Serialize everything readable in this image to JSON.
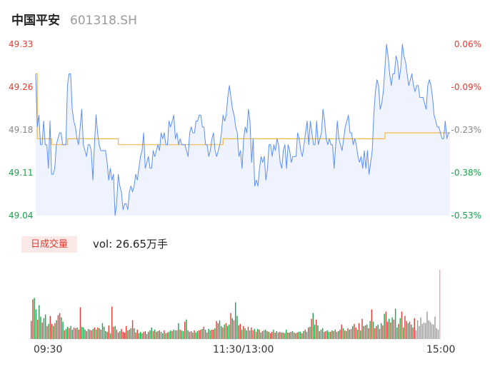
{
  "header": {
    "name": "中国平安",
    "code": "601318.SH"
  },
  "y_left_labels": [
    "49.33",
    "49.26",
    "49.18",
    "49.11",
    "49.04"
  ],
  "y_right_labels": [
    "0.06%",
    "-0.09%",
    "-0.23%",
    "-0.38%",
    "-0.53%"
  ],
  "volume": {
    "tag": "日成交量",
    "text": "vol: 26.65万手"
  },
  "time_labels": [
    "09:30",
    "11:30/13:00",
    "15:00"
  ],
  "colors": {
    "price": "#5b8ff9",
    "avg": "#f7b84b",
    "up": "#e33b33",
    "down": "#16a34a",
    "flat": "#9a9a9a",
    "fill": "#eef3fd"
  },
  "chart_data": {
    "type": "line",
    "x_ticks": [
      "09:30",
      "11:30/13:00",
      "15:00"
    ],
    "ylim": [
      49.04,
      49.33
    ],
    "series": [
      {
        "values": [
          49.28,
          49.19,
          49.21,
          49.16,
          49.16,
          49.2,
          49.16,
          49.16,
          49.12,
          49.2,
          49.11,
          49.11,
          49.12,
          49.16,
          49.17,
          49.18,
          49.18,
          49.16,
          49.16,
          49.16,
          49.26,
          49.28,
          49.28,
          49.22,
          49.2,
          49.19,
          49.17,
          49.16,
          49.19,
          49.22,
          49.16,
          49.15,
          49.14,
          49.16,
          49.16,
          49.15,
          49.1,
          49.16,
          49.21,
          49.18,
          49.16,
          49.15,
          49.15,
          49.15,
          49.15,
          49.13,
          49.1,
          49.12,
          49.1,
          49.11,
          49.04,
          49.06,
          49.11,
          49.09,
          49.08,
          49.05,
          49.06,
          49.06,
          49.05,
          49.08,
          49.09,
          49.08,
          49.09,
          49.11,
          49.1,
          49.12,
          49.14,
          49.15,
          49.18,
          49.12,
          49.13,
          49.14,
          49.12,
          49.12,
          49.15,
          49.14,
          49.15,
          49.16,
          49.15,
          49.18,
          49.17,
          49.18,
          49.16,
          49.16,
          49.2,
          49.19,
          49.2,
          49.21,
          49.17,
          49.18,
          49.16,
          49.17,
          49.16,
          49.16,
          49.16,
          49.15,
          49.14,
          49.18,
          49.19,
          49.18,
          49.18,
          49.2,
          49.2,
          49.21,
          49.21,
          49.19,
          49.19,
          49.16,
          49.16,
          49.14,
          49.15,
          49.17,
          49.18,
          49.15,
          49.14,
          49.15,
          49.16,
          49.18,
          49.21,
          49.2,
          49.21,
          49.24,
          49.26,
          49.24,
          49.22,
          49.21,
          49.19,
          49.18,
          49.14,
          49.15,
          49.12,
          49.17,
          49.19,
          49.18,
          49.22,
          49.2,
          49.13,
          49.17,
          49.09,
          49.1,
          49.09,
          49.12,
          49.14,
          49.13,
          49.14,
          49.1,
          49.12,
          49.16,
          49.16,
          49.14,
          49.16,
          49.15,
          49.17,
          49.16,
          49.13,
          49.12,
          49.15,
          49.16,
          49.12,
          49.16,
          49.15,
          49.13,
          49.14,
          49.14,
          49.14,
          49.18,
          49.17,
          49.15,
          49.14,
          49.16,
          49.18,
          49.2,
          49.16,
          49.2,
          49.18,
          49.16,
          49.16,
          49.2,
          49.16,
          49.17,
          49.18,
          49.22,
          49.2,
          49.17,
          49.16,
          49.17,
          49.16,
          49.16,
          49.12,
          49.16,
          49.2,
          49.17,
          49.16,
          49.15,
          49.17,
          49.19,
          49.2,
          49.21,
          49.18,
          49.18,
          49.16,
          49.17,
          49.16,
          49.14,
          49.13,
          49.14,
          49.12,
          49.15,
          49.12,
          49.15,
          49.11,
          49.13,
          49.15,
          49.21,
          49.25,
          49.27,
          49.26,
          49.22,
          49.23,
          49.25,
          49.29,
          49.33,
          49.31,
          49.28,
          49.26,
          49.28,
          49.28,
          49.31,
          49.3,
          49.27,
          49.29,
          49.33,
          49.31,
          49.3,
          49.28,
          49.26,
          49.27,
          49.28,
          49.26,
          49.25,
          49.26,
          49.26,
          49.24,
          49.24,
          49.24,
          49.23,
          49.22,
          49.26,
          49.27,
          49.26,
          49.24,
          49.21,
          49.2,
          49.19,
          49.19,
          49.18,
          49.17,
          49.17,
          49.2,
          49.17,
          49.18,
          49.18
        ]
      },
      {
        "values": [
          49.28,
          49.17,
          49.17,
          49.17,
          49.17,
          49.17,
          49.17,
          49.17,
          49.17,
          49.17,
          49.16,
          49.16,
          49.16,
          49.16,
          49.16,
          49.16,
          49.16,
          49.16,
          49.16,
          49.16,
          49.17,
          49.17,
          49.17,
          49.17,
          49.17,
          49.17,
          49.17,
          49.17,
          49.17,
          49.17,
          49.17,
          49.17,
          49.17,
          49.17,
          49.17,
          49.17,
          49.17,
          49.17,
          49.17,
          49.17,
          49.17,
          49.17,
          49.17,
          49.17,
          49.17,
          49.17,
          49.17,
          49.17,
          49.17,
          49.17,
          49.17,
          49.17,
          49.16,
          49.16,
          49.16,
          49.16,
          49.16,
          49.16,
          49.16,
          49.16,
          49.16,
          49.16,
          49.16,
          49.16,
          49.16,
          49.16,
          49.16,
          49.16,
          49.16,
          49.16,
          49.16,
          49.16,
          49.16,
          49.16,
          49.16,
          49.16,
          49.16,
          49.16,
          49.16,
          49.16,
          49.16,
          49.16,
          49.16,
          49.16,
          49.16,
          49.16,
          49.16,
          49.16,
          49.16,
          49.16,
          49.16,
          49.16,
          49.16,
          49.16,
          49.16,
          49.16,
          49.16,
          49.16,
          49.16,
          49.16,
          49.16,
          49.16,
          49.16,
          49.16,
          49.16,
          49.16,
          49.16,
          49.16,
          49.16,
          49.16,
          49.16,
          49.16,
          49.16,
          49.16,
          49.16,
          49.16,
          49.16,
          49.16,
          49.17,
          49.17,
          49.17,
          49.17,
          49.17,
          49.17,
          49.17,
          49.17,
          49.17,
          49.17,
          49.17,
          49.17,
          49.17,
          49.17,
          49.17,
          49.17,
          49.17,
          49.17,
          49.17,
          49.17,
          49.17,
          49.17,
          49.17,
          49.17,
          49.17,
          49.17,
          49.17,
          49.17,
          49.17,
          49.17,
          49.17,
          49.17,
          49.17,
          49.17,
          49.17,
          49.17,
          49.17,
          49.17,
          49.17,
          49.17,
          49.17,
          49.17,
          49.17,
          49.17,
          49.17,
          49.17,
          49.17,
          49.17,
          49.17,
          49.17,
          49.17,
          49.17,
          49.17,
          49.17,
          49.17,
          49.17,
          49.17,
          49.17,
          49.17,
          49.17,
          49.17,
          49.17,
          49.17,
          49.17,
          49.17,
          49.17,
          49.17,
          49.17,
          49.17,
          49.17,
          49.17,
          49.17,
          49.17,
          49.17,
          49.17,
          49.17,
          49.17,
          49.17,
          49.17,
          49.17,
          49.17,
          49.17,
          49.17,
          49.17,
          49.17,
          49.17,
          49.17,
          49.17,
          49.17,
          49.17,
          49.17,
          49.17,
          49.17,
          49.17,
          49.17,
          49.17,
          49.17,
          49.17,
          49.17,
          49.17,
          49.17,
          49.17,
          49.18,
          49.18,
          49.18,
          49.18,
          49.18,
          49.18,
          49.18,
          49.18,
          49.18,
          49.18,
          49.18,
          49.18,
          49.18,
          49.18,
          49.18,
          49.18,
          49.18,
          49.18,
          49.18,
          49.18,
          49.18,
          49.18,
          49.18,
          49.18,
          49.18,
          49.18,
          49.18,
          49.18,
          49.18,
          49.18,
          49.18,
          49.18,
          49.18,
          49.18,
          49.18,
          49.18,
          49.18,
          49.18,
          49.18,
          49.18,
          49.18,
          49.18
        ]
      }
    ],
    "volume_bars": {
      "values": [
        25,
        55,
        57,
        41,
        27,
        47,
        31,
        23,
        29,
        34,
        18,
        21,
        32,
        21,
        18,
        22,
        26,
        33,
        36,
        30,
        24,
        12,
        14,
        17,
        15,
        18,
        13,
        16,
        15,
        16,
        13,
        44,
        17,
        16,
        13,
        11,
        14,
        13,
        12,
        14,
        16,
        13,
        16,
        15,
        13,
        22,
        17,
        11,
        10,
        19,
        8,
        45,
        17,
        18,
        13,
        9,
        11,
        14,
        10,
        9,
        18,
        12,
        13,
        15,
        26,
        15,
        9,
        13,
        8,
        10,
        8,
        10,
        11,
        7,
        10,
        12,
        16,
        11,
        13,
        10,
        11,
        12,
        10,
        8,
        12,
        8,
        9,
        10,
        12,
        11,
        13,
        12,
        12,
        22,
        13,
        12,
        11,
        24,
        27,
        12,
        10,
        11,
        9,
        12,
        9,
        11,
        12,
        13,
        14,
        17,
        13,
        9,
        14,
        12,
        13,
        13,
        15,
        25,
        22,
        26,
        18,
        16,
        20,
        22,
        18,
        20,
        36,
        29,
        26,
        51,
        32,
        19,
        21,
        13,
        18,
        15,
        12,
        17,
        12,
        16,
        12,
        14,
        10,
        14,
        13,
        9,
        11,
        12,
        13,
        11,
        10,
        8,
        10,
        13,
        9,
        11,
        9,
        10,
        9,
        9,
        8,
        13,
        9,
        9,
        10,
        11,
        9,
        8,
        9,
        10,
        10,
        8,
        11,
        13,
        10,
        16,
        17,
        28,
        36,
        20,
        27,
        19,
        11,
        13,
        15,
        10,
        11,
        12,
        10,
        10,
        12,
        11,
        13,
        10,
        11,
        13,
        20,
        15,
        12,
        11,
        15,
        13,
        14,
        18,
        21,
        16,
        13,
        22,
        12,
        28,
        18,
        19,
        20,
        15,
        25,
        41,
        24,
        15,
        18,
        20,
        14,
        22,
        19,
        35,
        38,
        24,
        28,
        23,
        30,
        27,
        42,
        16,
        21,
        29,
        38,
        16,
        32,
        25,
        22,
        24,
        20,
        16,
        29,
        12,
        26,
        18,
        30,
        21,
        23,
        22,
        38,
        26,
        24,
        21,
        20,
        31,
        15,
        13,
        96
      ],
      "directions": [
        1,
        1,
        -1,
        -1,
        1,
        -1,
        -1,
        1,
        -1,
        -1,
        1,
        -1,
        1,
        1,
        -1,
        1,
        -1,
        1,
        1,
        -1,
        -1,
        1,
        -1,
        -1,
        1,
        -1,
        -1,
        1,
        1,
        -1,
        1,
        1,
        -1,
        -1,
        -1,
        1,
        -1,
        1,
        1,
        -1,
        1,
        -1,
        1,
        -1,
        1,
        -1,
        -1,
        -1,
        1,
        1,
        -1,
        1,
        1,
        -1,
        1,
        1,
        -1,
        1,
        1,
        1,
        1,
        -1,
        1,
        -1,
        1,
        -1,
        1,
        1,
        -1,
        -1,
        -1,
        1,
        1,
        -1,
        1,
        -1,
        -1,
        1,
        -1,
        1,
        -1,
        1,
        -1,
        -1,
        1,
        -1,
        1,
        -1,
        -1,
        1,
        -1,
        -1,
        1,
        -1,
        1,
        -1,
        -1,
        1,
        -1,
        -1,
        1,
        1,
        -1,
        1,
        -1,
        -1,
        1,
        1,
        -1,
        1,
        -1,
        1,
        -1,
        -1,
        1,
        1,
        -1,
        1,
        1,
        -1,
        -1,
        1,
        -1,
        1,
        -1,
        -1,
        1,
        -1,
        1,
        -1,
        -1,
        1,
        1,
        -1,
        1,
        -1,
        -1,
        1,
        -1,
        1,
        1,
        -1,
        1,
        -1,
        1,
        -1,
        1,
        -1,
        -1,
        1,
        -1,
        1,
        1,
        -1,
        1,
        -1,
        1,
        1,
        -1,
        1,
        -1,
        -1,
        1,
        -1,
        1,
        -1,
        1,
        -1,
        1,
        -1,
        -1,
        1,
        -1,
        1,
        -1,
        1,
        -1,
        1,
        -1,
        -1,
        1,
        -1,
        1,
        -1,
        -1,
        1,
        1,
        -1,
        -1,
        1,
        -1,
        1,
        -1,
        1,
        -1,
        1,
        1,
        -1,
        1,
        -1,
        1,
        -1,
        1,
        -1,
        1,
        1,
        -1,
        1,
        -1,
        1,
        -1,
        1,
        -1,
        1,
        -1,
        1,
        -1,
        1,
        1,
        -1,
        1,
        -1,
        1,
        -1,
        1,
        1,
        -1,
        1,
        -1,
        1,
        -1,
        -1,
        1,
        -1,
        1,
        -1,
        1,
        1,
        -1,
        1,
        -1,
        1,
        1
      ]
    }
  }
}
